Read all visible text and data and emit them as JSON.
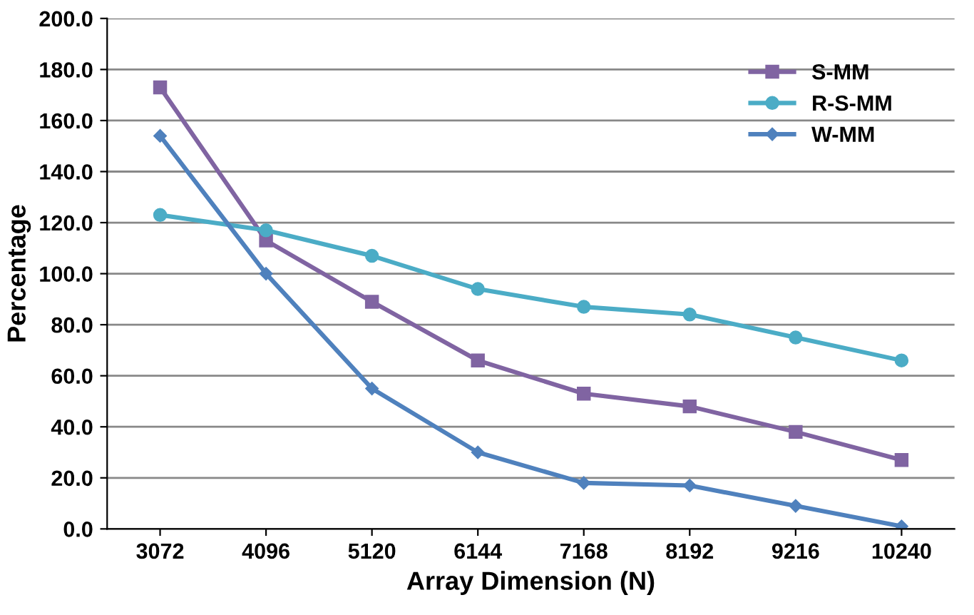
{
  "chart_data": {
    "type": "line",
    "xlabel": "Array Dimension (N)",
    "ylabel": "Percentage",
    "categories": [
      "3072",
      "4096",
      "5120",
      "6144",
      "7168",
      "8192",
      "9216",
      "10240"
    ],
    "series": [
      {
        "name": "S-MM",
        "color": "#8064a2",
        "marker": "square",
        "values": [
          173,
          113,
          89,
          66,
          53,
          48,
          38,
          27
        ]
      },
      {
        "name": "R-S-MM",
        "color": "#4bacc6",
        "marker": "circle",
        "values": [
          123,
          117,
          107,
          94,
          87,
          84,
          75,
          66
        ]
      },
      {
        "name": "W-MM",
        "color": "#4f81bd",
        "marker": "diamond",
        "values": [
          154,
          100,
          55,
          30,
          18,
          17,
          9,
          1
        ]
      }
    ],
    "ylim": [
      0,
      200
    ],
    "yticks": [
      {
        "value": 0,
        "label": "0.0"
      },
      {
        "value": 20,
        "label": "20.0"
      },
      {
        "value": 40,
        "label": "40.0"
      },
      {
        "value": 60,
        "label": "60.0"
      },
      {
        "value": 80,
        "label": "80.0"
      },
      {
        "value": 100,
        "label": "100.0"
      },
      {
        "value": 120,
        "label": "120.0"
      },
      {
        "value": 140,
        "label": "140.0"
      },
      {
        "value": 160,
        "label": "160.0"
      },
      {
        "value": 180,
        "label": "180.0"
      },
      {
        "value": 200,
        "label": "200.0"
      }
    ],
    "grid": "y",
    "legend": "top right"
  }
}
